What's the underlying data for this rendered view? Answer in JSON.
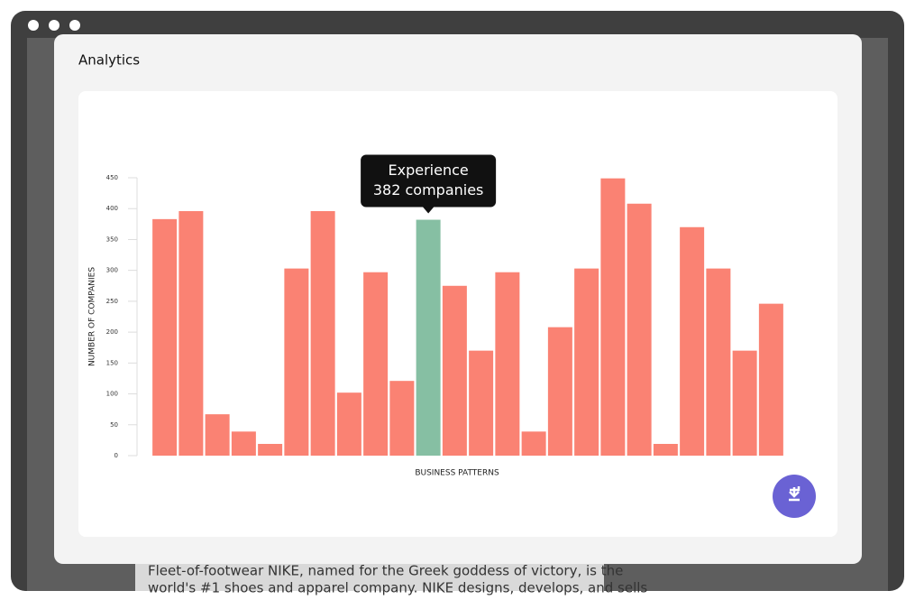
{
  "page_title": "Analytics",
  "background_text": [
    "Fleet-of-footwear NIKE, named for the Greek goddess of victory, is the",
    "world's #1 shoes and apparel company. NIKE designs, develops, and sells"
  ],
  "chart_data": {
    "type": "bar",
    "categories": [
      null,
      null,
      null,
      null,
      null,
      null,
      null,
      null,
      null,
      null,
      "Experience",
      null,
      null,
      null,
      null,
      null,
      null,
      null,
      null,
      null,
      null,
      null,
      null,
      null
    ],
    "values": [
      383,
      396,
      67,
      39,
      19,
      303,
      396,
      102,
      297,
      121,
      382,
      275,
      170,
      297,
      39,
      208,
      303,
      449,
      408,
      19,
      370,
      303,
      170,
      246
    ],
    "value_labels": [
      null,
      null,
      null,
      null,
      null,
      null,
      null,
      null,
      null,
      null,
      "382 companies",
      null,
      null,
      null,
      null,
      null,
      null,
      null,
      null,
      null,
      null,
      null,
      null,
      null
    ],
    "color": "#fa8273",
    "highlight_color": "#86bfa3",
    "highlight_index": 10,
    "ylabel": "NUMBER OF COMPANIES",
    "xlabel": "BUSINESS PATTERNS",
    "ylim": [
      0,
      450
    ],
    "yticks": [
      0,
      50,
      100,
      150,
      200,
      250,
      300,
      350,
      400,
      450
    ]
  }
}
